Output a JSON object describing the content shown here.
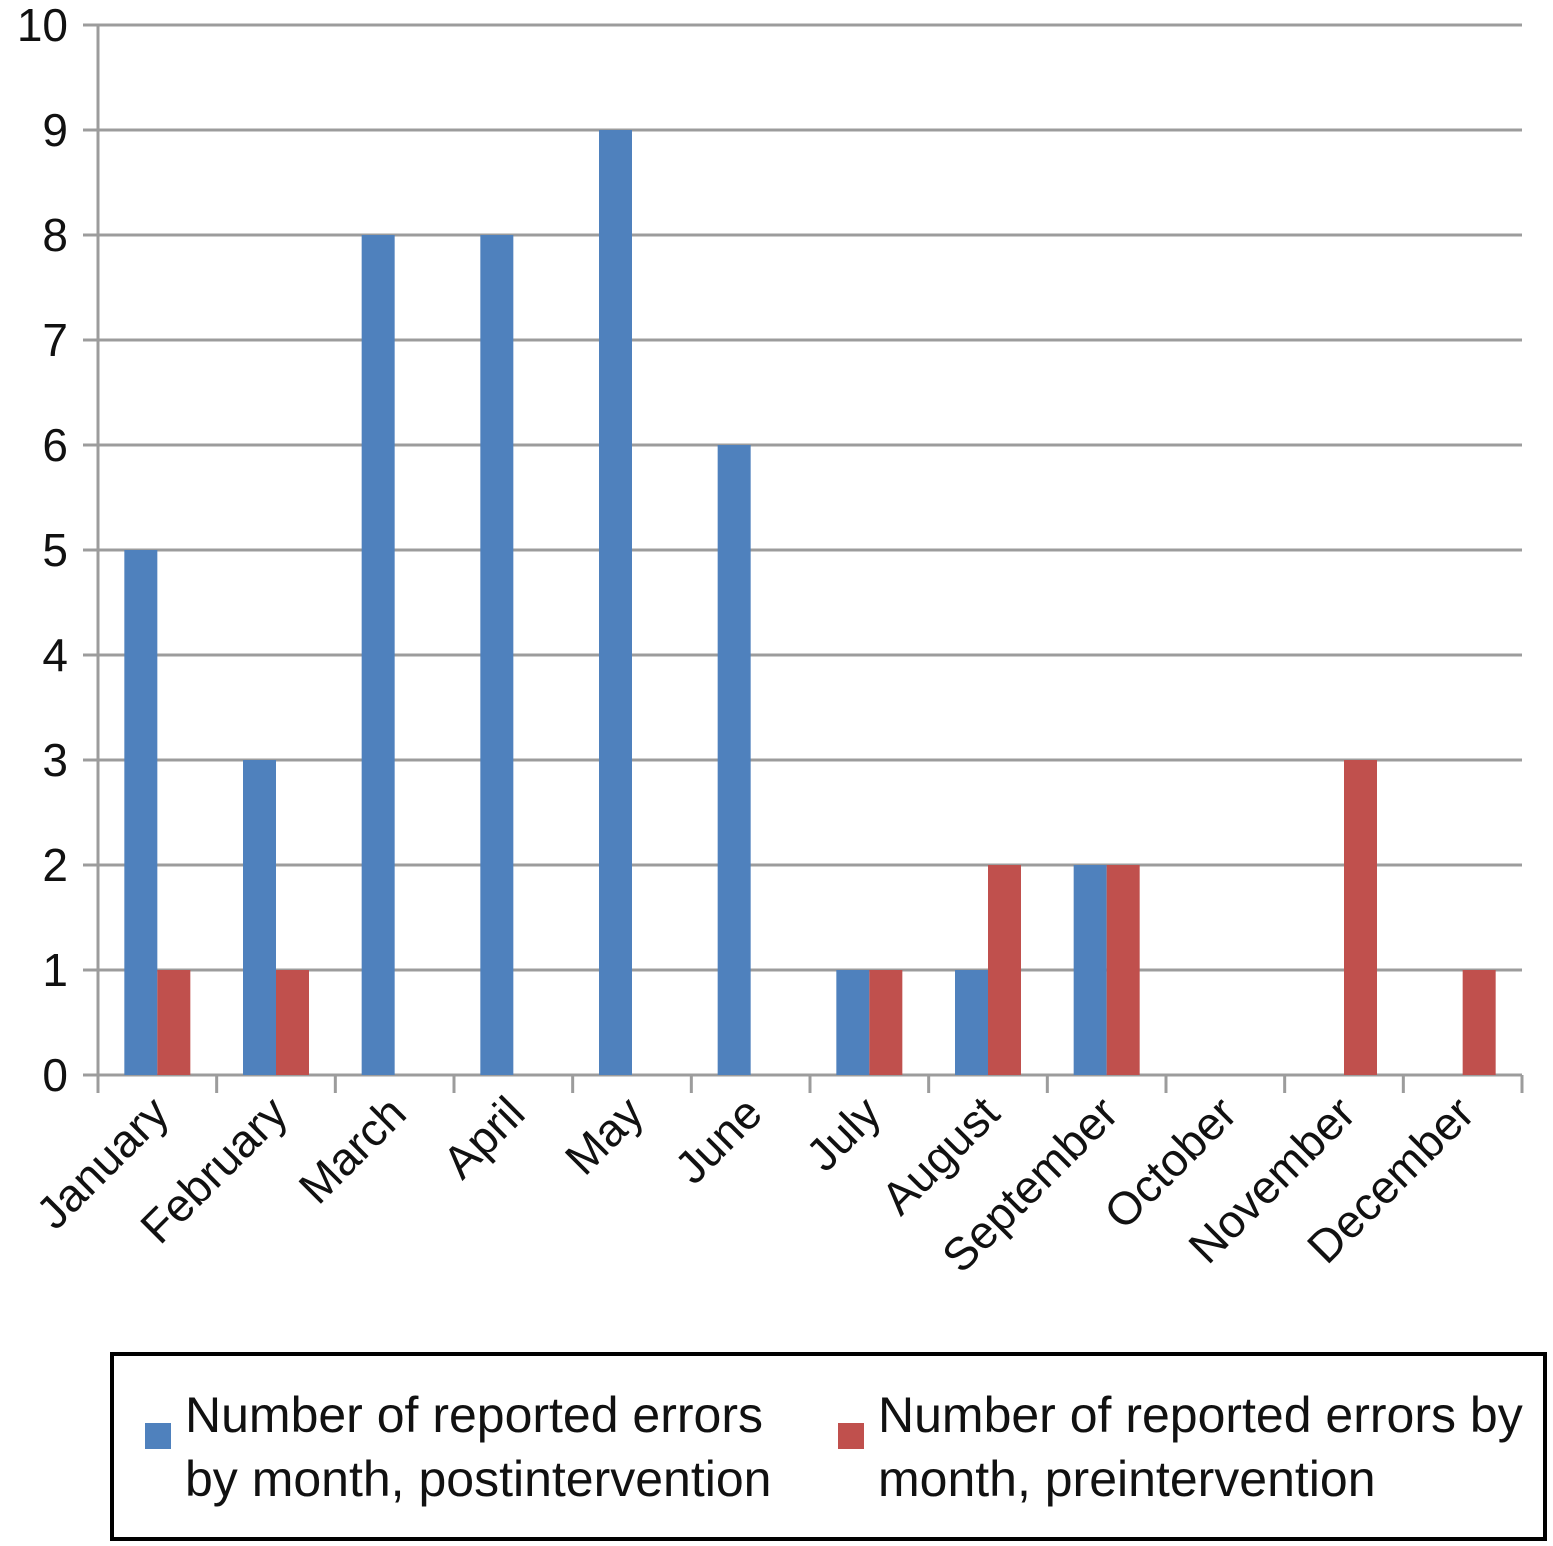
{
  "chart_data": {
    "type": "bar",
    "title": "",
    "xlabel": "",
    "ylabel": "",
    "categories": [
      "January",
      "February",
      "March",
      "April",
      "May",
      "June",
      "July",
      "August",
      "September",
      "October",
      "November",
      "December"
    ],
    "series": [
      {
        "name": "Number of reported errors by month, postintervention",
        "color": "#4f81bd",
        "values": [
          5,
          3,
          8,
          8,
          9,
          6,
          1,
          1,
          2,
          0,
          0,
          0
        ]
      },
      {
        "name": "Number of reported errors by month, preintervention",
        "color": "#c0504d",
        "values": [
          1,
          1,
          0,
          0,
          0,
          0,
          1,
          2,
          2,
          0,
          3,
          1
        ]
      }
    ],
    "ylim": [
      0,
      10
    ],
    "yticks": [
      0,
      1,
      2,
      3,
      4,
      5,
      6,
      7,
      8,
      9,
      10
    ],
    "grid": true,
    "gridline_color": "#9c9c9c",
    "axis_color": "#9c9c9c",
    "text_color": "#111111",
    "legend_position": "bottom",
    "x_label_rotation": -45
  },
  "legend": {
    "border_color": "#000000",
    "items": [
      {
        "color": "#4f81bd",
        "lines": [
          "Number of reported errors",
          "by month, postintervention"
        ]
      },
      {
        "color": "#c0504d",
        "lines": [
          "Number of reported errors by",
          "month, preintervention"
        ]
      }
    ]
  }
}
